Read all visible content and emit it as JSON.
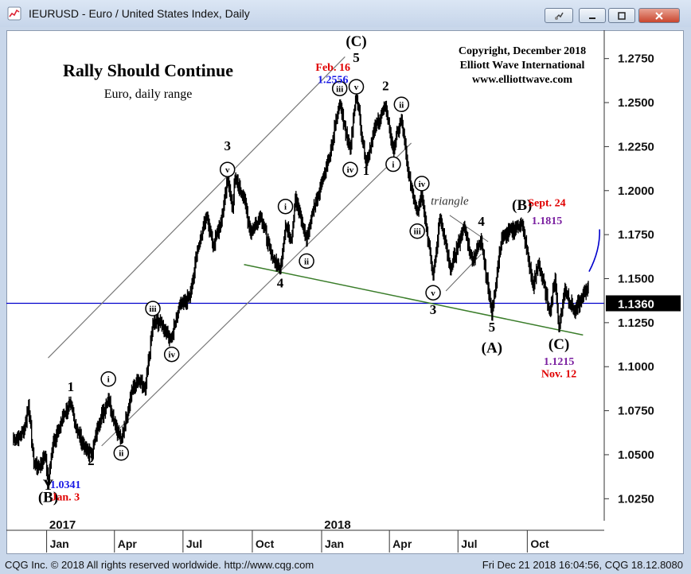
{
  "window": {
    "title": "IEURUSD - Euro / United States Index, Daily",
    "buttons": [
      "pin",
      "minimize",
      "maximize",
      "close"
    ]
  },
  "status": {
    "left": "CQG Inc. © 2018 All rights reserved worldwide. http://www.cqg.com",
    "right": "Fri Dec 21 2018 16:04:56, CQG 18.12.8080"
  },
  "colors": {
    "price": "#000000",
    "channel": "#777777",
    "trendline": "#3a7d2a",
    "hline": "#0000cc",
    "projection": "#0000cc",
    "red": "#e00000",
    "blue": "#1a1ae6",
    "purple": "#7a1fa0"
  },
  "chart_data": {
    "type": "line",
    "title": "Rally Should Continue",
    "subtitle": "Euro, daily range",
    "copyright": [
      "Copyright, December 2018",
      "Elliott Wave International",
      "www.elliottwave.com"
    ],
    "y_ticks": [
      "1.2750",
      "1.2500",
      "1.2250",
      "1.2000",
      "1.1750",
      "1.1500",
      "1.1250",
      "1.1000",
      "1.0750",
      "1.0500",
      "1.0250"
    ],
    "ylim": [
      1.0125,
      1.2875
    ],
    "x_range": [
      "2016-11-17",
      "2018-12-21"
    ],
    "x_month_labels": [
      {
        "date": "2017-01-01",
        "label": "Jan"
      },
      {
        "date": "2017-04-01",
        "label": "Apr"
      },
      {
        "date": "2017-07-01",
        "label": "Jul"
      },
      {
        "date": "2017-10-01",
        "label": "Oct"
      },
      {
        "date": "2018-01-01",
        "label": "Jan"
      },
      {
        "date": "2018-04-01",
        "label": "Apr"
      },
      {
        "date": "2018-07-01",
        "label": "Jul"
      },
      {
        "date": "2018-10-01",
        "label": "Oct"
      }
    ],
    "x_year_labels": [
      {
        "date": "2017-01-01",
        "label": "2017"
      },
      {
        "date": "2018-01-01",
        "label": "2018"
      }
    ],
    "last_price": "1.1360",
    "price_path": [
      [
        "2016-11-18",
        1.059
      ],
      [
        "2016-11-25",
        1.06
      ],
      [
        "2016-12-02",
        1.064
      ],
      [
        "2016-12-08",
        1.078
      ],
      [
        "2016-12-15",
        1.045
      ],
      [
        "2016-12-22",
        1.043
      ],
      [
        "2016-12-30",
        1.05
      ],
      [
        "2017-01-03",
        1.0341
      ],
      [
        "2017-01-10",
        1.058
      ],
      [
        "2017-01-17",
        1.064
      ],
      [
        "2017-01-24",
        1.073
      ],
      [
        "2017-02-02",
        1.079
      ],
      [
        "2017-02-10",
        1.064
      ],
      [
        "2017-02-22",
        1.053
      ],
      [
        "2017-03-02",
        1.05
      ],
      [
        "2017-03-10",
        1.066
      ],
      [
        "2017-03-24",
        1.082
      ],
      [
        "2017-04-03",
        1.066
      ],
      [
        "2017-04-10",
        1.058
      ],
      [
        "2017-04-24",
        1.086
      ],
      [
        "2017-05-02",
        1.092
      ],
      [
        "2017-05-12",
        1.087
      ],
      [
        "2017-05-22",
        1.124
      ],
      [
        "2017-06-01",
        1.126
      ],
      [
        "2017-06-08",
        1.12
      ],
      [
        "2017-06-16",
        1.116
      ],
      [
        "2017-06-27",
        1.136
      ],
      [
        "2017-07-10",
        1.14
      ],
      [
        "2017-07-20",
        1.166
      ],
      [
        "2017-08-02",
        1.186
      ],
      [
        "2017-08-10",
        1.168
      ],
      [
        "2017-08-21",
        1.183
      ],
      [
        "2017-08-29",
        1.207
      ],
      [
        "2017-09-05",
        1.19
      ],
      [
        "2017-09-08",
        1.207
      ],
      [
        "2017-09-20",
        1.196
      ],
      [
        "2017-09-29",
        1.176
      ],
      [
        "2017-10-12",
        1.186
      ],
      [
        "2017-10-26",
        1.164
      ],
      [
        "2017-11-07",
        1.155
      ],
      [
        "2017-11-14",
        1.18
      ],
      [
        "2017-11-22",
        1.172
      ],
      [
        "2017-11-27",
        1.196
      ],
      [
        "2017-12-12",
        1.172
      ],
      [
        "2017-12-20",
        1.188
      ],
      [
        "2018-01-02",
        1.206
      ],
      [
        "2018-01-12",
        1.22
      ],
      [
        "2018-01-25",
        1.25
      ],
      [
        "2018-02-08",
        1.223
      ],
      [
        "2018-02-16",
        1.2556
      ],
      [
        "2018-03-01",
        1.215
      ],
      [
        "2018-03-12",
        1.235
      ],
      [
        "2018-03-27",
        1.248
      ],
      [
        "2018-04-06",
        1.223
      ],
      [
        "2018-04-17",
        1.241
      ],
      [
        "2018-04-26",
        1.21
      ],
      [
        "2018-05-08",
        1.188
      ],
      [
        "2018-05-14",
        1.199
      ],
      [
        "2018-05-29",
        1.151
      ],
      [
        "2018-06-07",
        1.185
      ],
      [
        "2018-06-21",
        1.155
      ],
      [
        "2018-07-09",
        1.18
      ],
      [
        "2018-07-20",
        1.16
      ],
      [
        "2018-08-01",
        1.172
      ],
      [
        "2018-08-15",
        1.13
      ],
      [
        "2018-08-28",
        1.173
      ],
      [
        "2018-09-24",
        1.1815
      ],
      [
        "2018-10-09",
        1.145
      ],
      [
        "2018-10-16",
        1.159
      ],
      [
        "2018-10-31",
        1.131
      ],
      [
        "2018-11-07",
        1.15
      ],
      [
        "2018-11-12",
        1.1215
      ],
      [
        "2018-11-20",
        1.144
      ],
      [
        "2018-12-03",
        1.131
      ],
      [
        "2018-12-12",
        1.138
      ],
      [
        "2018-12-21",
        1.146
      ]
    ],
    "projection": [
      [
        "2018-12-22",
        1.154
      ],
      [
        "2019-01-05",
        1.178
      ]
    ],
    "horizontal_line": 1.136,
    "channel_lines": [
      [
        [
          "2017-01-03",
          1.105
        ],
        [
          "2018-02-01",
          1.276
        ]
      ],
      [
        [
          "2017-03-15",
          1.055
        ],
        [
          "2018-04-30",
          1.227
        ]
      ]
    ],
    "trendline": [
      [
        "2017-09-20",
        1.158
      ],
      [
        "2018-12-14",
        1.118
      ]
    ],
    "triangle": [
      [
        [
          "2018-06-20",
          1.186
        ],
        [
          "2018-08-10",
          1.171
        ]
      ],
      [
        [
          "2018-06-15",
          1.143
        ],
        [
          "2018-08-01",
          1.164
        ]
      ]
    ],
    "wave_labels": [
      {
        "text": "Y",
        "date": "2017-01-03",
        "y": 1.03,
        "style": "plain",
        "size": "large"
      },
      {
        "text": "(B)",
        "date": "2017-01-03",
        "y": 1.023,
        "style": "plain",
        "size": "large"
      },
      {
        "text": "1",
        "date": "2017-02-02",
        "y": 1.086,
        "style": "plain"
      },
      {
        "text": "2",
        "date": "2017-03-01",
        "y": 1.044,
        "style": "plain"
      },
      {
        "text": "i",
        "date": "2017-03-24",
        "y": 1.093,
        "style": "circle"
      },
      {
        "text": "ii",
        "date": "2017-04-10",
        "y": 1.051,
        "style": "circle"
      },
      {
        "text": "iii",
        "date": "2017-05-22",
        "y": 1.133,
        "style": "circle"
      },
      {
        "text": "iv",
        "date": "2017-06-16",
        "y": 1.107,
        "style": "circle"
      },
      {
        "text": "3",
        "date": "2017-08-29",
        "y": 1.223,
        "style": "plain"
      },
      {
        "text": "v",
        "date": "2017-08-29",
        "y": 1.212,
        "style": "circle"
      },
      {
        "text": "4",
        "date": "2017-11-07",
        "y": 1.145,
        "style": "plain"
      },
      {
        "text": "i",
        "date": "2017-11-14",
        "y": 1.191,
        "style": "circle"
      },
      {
        "text": "ii",
        "date": "2017-12-12",
        "y": 1.16,
        "style": "circle"
      },
      {
        "text": "iii",
        "date": "2018-01-25",
        "y": 1.258,
        "style": "circle"
      },
      {
        "text": "iv",
        "date": "2018-02-08",
        "y": 1.212,
        "style": "circle"
      },
      {
        "text": "1",
        "date": "2018-03-01",
        "y": 1.209,
        "style": "plain"
      },
      {
        "text": "v",
        "date": "2018-02-16",
        "y": 1.259,
        "style": "circle"
      },
      {
        "text": "5",
        "date": "2018-02-16",
        "y": 1.273,
        "style": "plain"
      },
      {
        "text": "(C)",
        "date": "2018-02-16",
        "y": 1.282,
        "style": "plain",
        "size": "large"
      },
      {
        "text": "2",
        "date": "2018-03-27",
        "y": 1.257,
        "style": "plain"
      },
      {
        "text": "ii",
        "date": "2018-04-17",
        "y": 1.249,
        "style": "circle"
      },
      {
        "text": "i",
        "date": "2018-04-06",
        "y": 1.215,
        "style": "circle"
      },
      {
        "text": "iv",
        "date": "2018-05-14",
        "y": 1.204,
        "style": "circle"
      },
      {
        "text": "iii",
        "date": "2018-05-08",
        "y": 1.177,
        "style": "circle"
      },
      {
        "text": "v",
        "date": "2018-05-29",
        "y": 1.142,
        "style": "circle"
      },
      {
        "text": "3",
        "date": "2018-05-29",
        "y": 1.13,
        "style": "plain"
      },
      {
        "text": "4",
        "date": "2018-08-01",
        "y": 1.18,
        "style": "plain"
      },
      {
        "text": "5",
        "date": "2018-08-15",
        "y": 1.12,
        "style": "plain"
      },
      {
        "text": "(A)",
        "date": "2018-08-15",
        "y": 1.108,
        "style": "plain",
        "size": "large"
      },
      {
        "text": "(B)",
        "date": "2018-09-24",
        "y": 1.189,
        "style": "plain",
        "size": "large"
      },
      {
        "text": "(C)",
        "date": "2018-11-12",
        "y": 1.11,
        "style": "plain",
        "size": "large"
      }
    ],
    "annotations": [
      {
        "text": "Feb. 16",
        "date": "2018-01-16",
        "y": 1.268,
        "color": "red"
      },
      {
        "text": "1.2556",
        "date": "2018-01-16",
        "y": 1.261,
        "color": "blue"
      },
      {
        "text": "1.0341",
        "date": "2017-01-26",
        "y": 1.031,
        "color": "blue"
      },
      {
        "text": "Jan. 3",
        "date": "2017-01-26",
        "y": 1.024,
        "color": "red"
      },
      {
        "text": "Sept. 24",
        "date": "2018-10-27",
        "y": 1.191,
        "color": "red"
      },
      {
        "text": "1.1815",
        "date": "2018-10-27",
        "y": 1.181,
        "color": "purple"
      },
      {
        "text": "1.1215",
        "date": "2018-11-12",
        "y": 1.101,
        "color": "purple"
      },
      {
        "text": "Nov. 12",
        "date": "2018-11-12",
        "y": 1.094,
        "color": "red"
      },
      {
        "text": "triangle",
        "date": "2018-06-20",
        "y": 1.192,
        "color": "dark",
        "italic": true
      }
    ]
  }
}
